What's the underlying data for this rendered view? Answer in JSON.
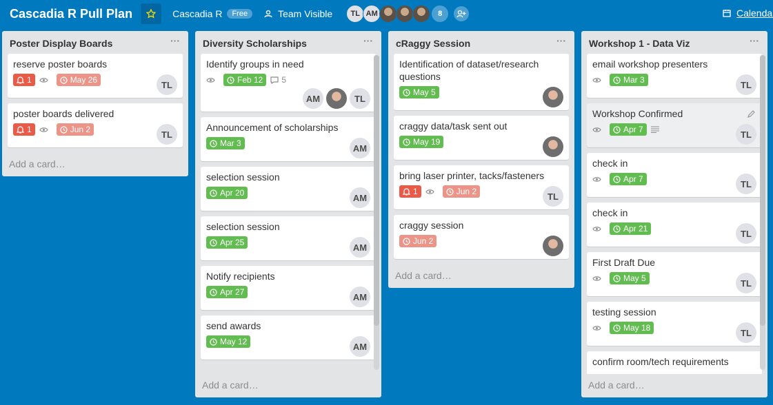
{
  "header": {
    "title": "Cascadia R Pull Plan",
    "team": "Cascadia R",
    "plan": "Free",
    "visibility": "Team Visible",
    "members": [
      "TL",
      "AM",
      null,
      null,
      null
    ],
    "member_count": 8,
    "calendar": "Calendar"
  },
  "lists": [
    {
      "name": "Poster Display Boards",
      "add": "Add a card…",
      "cards": [
        {
          "title": "reserve poster boards",
          "alert": 1,
          "watch": true,
          "due": {
            "date": "May 26",
            "state": "overdue"
          },
          "members": [
            "TL"
          ]
        },
        {
          "title": "poster boards delivered",
          "alert": 1,
          "watch": true,
          "due": {
            "date": "Jun 2",
            "state": "overdue"
          },
          "members": [
            "TL"
          ]
        }
      ]
    },
    {
      "name": "Diversity Scholarships",
      "add": "Add a card…",
      "cards": [
        {
          "title": "Identify groups in need",
          "watch": true,
          "due": {
            "date": "Feb 12",
            "state": "done"
          },
          "comments": 5,
          "members": [
            "AM",
            null,
            "TL"
          ]
        },
        {
          "title": "Announcement of scholarships",
          "due": {
            "date": "Mar 3",
            "state": "done"
          },
          "members": [
            "AM"
          ]
        },
        {
          "title": "selection session",
          "due": {
            "date": "Apr 20",
            "state": "done"
          },
          "members": [
            "AM"
          ]
        },
        {
          "title": "selection session",
          "due": {
            "date": "Apr 25",
            "state": "done"
          },
          "members": [
            "AM"
          ]
        },
        {
          "title": "Notify recipients",
          "due": {
            "date": "Apr 27",
            "state": "done"
          },
          "members": [
            "AM"
          ]
        },
        {
          "title": "send awards",
          "due": {
            "date": "May 12",
            "state": "done"
          },
          "members": [
            "AM"
          ]
        }
      ]
    },
    {
      "name": "cRaggy Session",
      "add": "Add a card…",
      "cards": [
        {
          "title": "Identification of dataset/research questions",
          "due": {
            "date": "May 5",
            "state": "done"
          },
          "members": [
            null
          ]
        },
        {
          "title": "craggy data/task sent out",
          "due": {
            "date": "May 19",
            "state": "done"
          },
          "members": [
            null
          ]
        },
        {
          "title": "bring laser printer, tacks/fasteners",
          "alert": 1,
          "watch": true,
          "due": {
            "date": "Jun 2",
            "state": "overdue"
          },
          "members": [
            "TL"
          ]
        },
        {
          "title": "craggy session",
          "due": {
            "date": "Jun 2",
            "state": "overdue"
          },
          "members": [
            null
          ]
        }
      ]
    },
    {
      "name": "Workshop 1 - Data Viz",
      "add": "Add a card…",
      "cards": [
        {
          "title": "email workshop presenters",
          "watch": true,
          "due": {
            "date": "Mar 3",
            "state": "done"
          },
          "members": [
            "TL"
          ]
        },
        {
          "title": "Workshop Confirmed",
          "watch": true,
          "due": {
            "date": "Apr 7",
            "state": "done"
          },
          "description": true,
          "hover": true,
          "members": [
            "TL"
          ]
        },
        {
          "title": "check in",
          "watch": true,
          "due": {
            "date": "Apr 7",
            "state": "done"
          },
          "members": [
            "TL"
          ]
        },
        {
          "title": "check in",
          "watch": true,
          "due": {
            "date": "Apr 21",
            "state": "done"
          },
          "members": [
            "TL"
          ]
        },
        {
          "title": "First Draft Due",
          "watch": true,
          "due": {
            "date": "May 5",
            "state": "done"
          },
          "members": [
            "TL"
          ]
        },
        {
          "title": "testing session",
          "watch": true,
          "due": {
            "date": "May 18",
            "state": "done"
          },
          "members": [
            "TL"
          ]
        },
        {
          "title": "confirm room/tech requirements",
          "members": []
        }
      ]
    }
  ]
}
